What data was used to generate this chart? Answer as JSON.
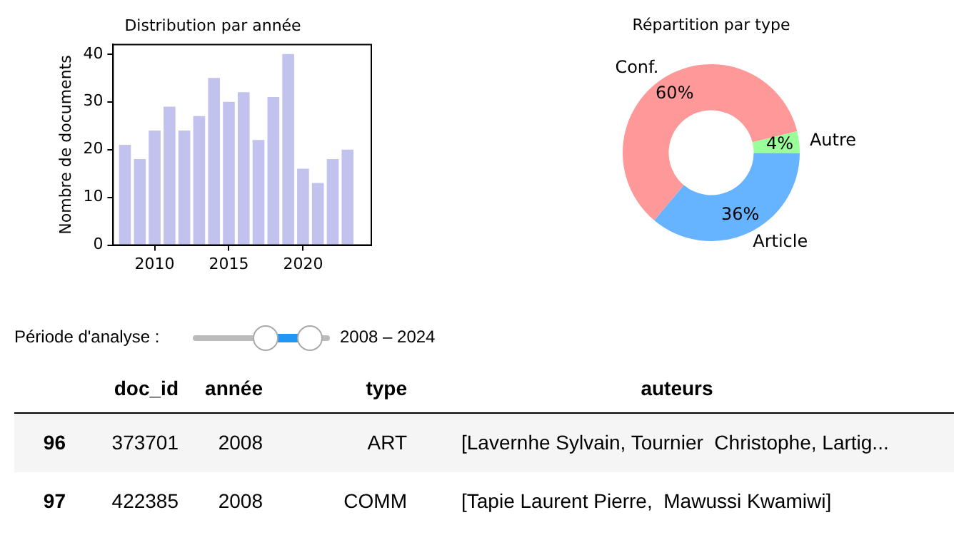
{
  "chart_data": [
    {
      "type": "bar",
      "title": "Distribution par année",
      "ylabel": "Nombre de documents",
      "x": [
        2008,
        2009,
        2010,
        2011,
        2012,
        2013,
        2014,
        2015,
        2016,
        2017,
        2018,
        2019,
        2020,
        2021,
        2022,
        2023
      ],
      "values": [
        21,
        18,
        24,
        29,
        24,
        27,
        35,
        30,
        32,
        22,
        31,
        40,
        16,
        13,
        18,
        20
      ],
      "color": "#c2c2ee",
      "xlim": [
        2007.2,
        2024.6
      ],
      "xticks": [
        2010,
        2015,
        2020
      ],
      "ylim": [
        0,
        42
      ],
      "yticks": [
        0,
        10,
        20,
        30,
        40
      ]
    },
    {
      "type": "donut",
      "title": "Répartition par type",
      "categories": [
        "Conf.",
        "Autre",
        "Article"
      ],
      "values": [
        60,
        4,
        36
      ],
      "colors": [
        "#ff9999",
        "#99ff99",
        "#66b3ff"
      ],
      "value_labels": [
        "60%",
        "4%",
        "36%"
      ]
    },
    {
      "type": "other",
      "title": "Période d'analyse :",
      "annotations": [
        "2008 – 2024"
      ]
    },
    {
      "type": "other",
      "categories": [
        "doc_id",
        "année",
        "type",
        "auteurs"
      ],
      "annotations": [
        "96",
        "373701",
        "2008",
        "ART",
        "[Lavernhe Sylvain, Tournier  Christophe, Lartig...",
        "97",
        "422385",
        "2008",
        "COMM",
        "[Tapie Laurent Pierre,  Mawussi Kwamiwi]"
      ]
    }
  ]
}
